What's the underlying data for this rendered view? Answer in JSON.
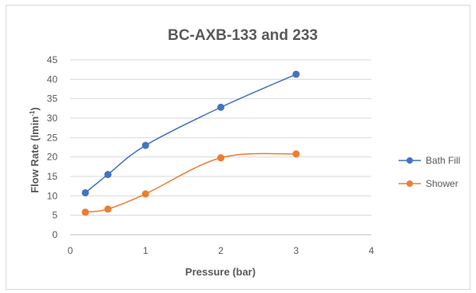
{
  "chart_data": {
    "type": "line",
    "title": "BC-AXB-133 and 233",
    "xlabel": "Pressure (bar)",
    "ylabel": "Flow Rate (lmin⁻¹)",
    "ylabel_main": "Flow Rate (lmin",
    "ylabel_sup": "-1",
    "ylabel_close": ")",
    "xlim": [
      0,
      4
    ],
    "ylim": [
      0,
      45
    ],
    "xticks": [
      0,
      1,
      2,
      3,
      4
    ],
    "yticks": [
      0,
      5,
      10,
      15,
      20,
      25,
      30,
      35,
      40,
      45
    ],
    "grid": "horizontal",
    "legend_position": "right",
    "smooth": true,
    "series": [
      {
        "name": "Bath Fill",
        "color": "#4472c4",
        "x": [
          0.2,
          0.5,
          1,
          2,
          3
        ],
        "y": [
          10.8,
          15.5,
          23.0,
          32.8,
          41.3
        ]
      },
      {
        "name": "Shower",
        "color": "#ed7d31",
        "x": [
          0.2,
          0.5,
          1,
          2,
          3
        ],
        "y": [
          5.8,
          6.6,
          10.5,
          19.8,
          20.8
        ]
      }
    ]
  }
}
